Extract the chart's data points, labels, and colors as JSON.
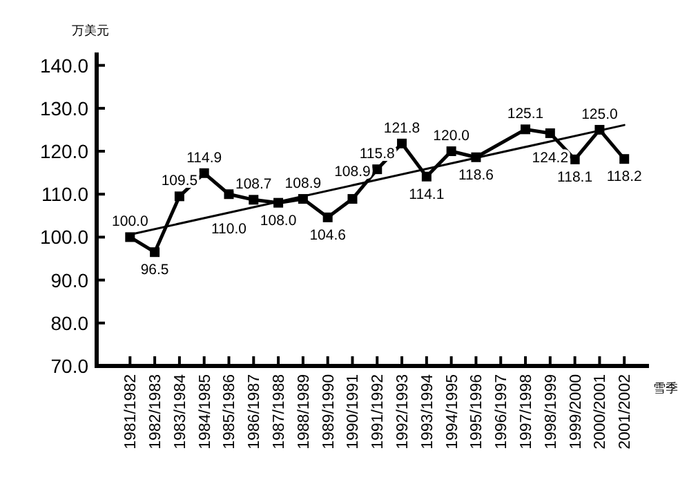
{
  "chart_data": {
    "type": "line",
    "ylabel": "万美元",
    "xlabel": "雪季",
    "categories": [
      "1981/1982",
      "1982/1983",
      "1983/1984",
      "1984/1985",
      "1985/1986",
      "1986/1987",
      "1987/1988",
      "1988/1989",
      "1989/1990",
      "1990/1991",
      "1991/1992",
      "1992/1993",
      "1993/1994",
      "1994/1995",
      "1995/1996",
      "1996/1997",
      "1997/1998",
      "1998/1999",
      "1999/2000",
      "2000/2001",
      "2001/2002"
    ],
    "ylim": [
      70,
      143
    ],
    "yticks": [
      {
        "value": 70,
        "label": "70.0"
      },
      {
        "value": 80,
        "label": "80.0"
      },
      {
        "value": 90,
        "label": "90.0"
      },
      {
        "value": 100,
        "label": "100.0"
      },
      {
        "value": 110,
        "label": "110.0"
      },
      {
        "value": 120,
        "label": "120.0"
      },
      {
        "value": 130,
        "label": "130.0"
      },
      {
        "value": 140,
        "label": "140.0"
      }
    ],
    "marker": "square",
    "line_style": "solid",
    "grid": false,
    "series": [
      {
        "color": "#000000",
        "values": [
          100.0,
          96.5,
          109.5,
          114.9,
          110.0,
          108.7,
          108.0,
          108.9,
          104.6,
          108.9,
          115.8,
          121.8,
          114.1,
          120.0,
          118.6,
          null,
          125.1,
          124.2,
          118.1,
          125.0,
          118.2
        ],
        "value_labels": [
          "100.0",
          "96.5",
          "109.5",
          "114.9",
          "110.0",
          "108.7",
          "108.0",
          "108.9",
          "104.6",
          "108.9",
          "115.8",
          "121.8",
          "114.1",
          "120.0",
          "118.6",
          null,
          "125.1",
          "124.2",
          "118.1",
          "125.0",
          "118.2"
        ]
      },
      {
        "type": "line",
        "marker": "none",
        "color": "#000000",
        "values": [
          100.6,
          null,
          null,
          null,
          null,
          null,
          null,
          null,
          null,
          null,
          null,
          null,
          null,
          null,
          null,
          null,
          null,
          null,
          null,
          null,
          126.1
        ]
      }
    ]
  }
}
